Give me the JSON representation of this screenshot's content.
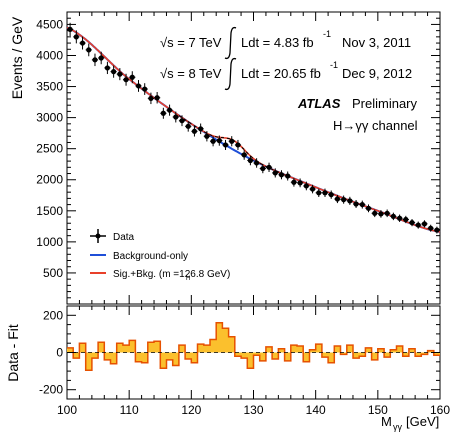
{
  "chart_data": [
    {
      "type": "scatter",
      "panel": "main",
      "ylabel": "Events / GeV",
      "xlim": [
        100,
        160
      ],
      "ylim": [
        0,
        4700
      ],
      "yticks": [
        500,
        1000,
        1500,
        2000,
        2500,
        3000,
        3500,
        4000,
        4500
      ],
      "yticklabels": [
        "500",
        "1000",
        "1500",
        "2000",
        "2500",
        "3000",
        "3500",
        "4000",
        "4500"
      ],
      "annotations": {
        "sqrt_s_7": "√s = 7 TeV",
        "lumi_7": "Ldt = 4.83 fb",
        "lumi_7_exp": "-1",
        "date_7": "Nov  3, 2011",
        "sqrt_s_8": "√s = 8 TeV",
        "lumi_8": "Ldt = 20.65 fb",
        "lumi_8_exp": "-1",
        "date_8": "Dec  9, 2012",
        "experiment": "ATLAS",
        "status": "Preliminary",
        "channel": "H→γγ channel"
      },
      "legend": {
        "placement": "bottom-left",
        "entries": [
          {
            "label": "Data",
            "style": "points",
            "color": "#000000"
          },
          {
            "label": "Background-only",
            "style": "line",
            "color": "#1f4fd8"
          },
          {
            "label": "Sig.+Bkg. (m  =126.8 GeV)",
            "sublabel": "H",
            "style": "line",
            "color": "#e8402a"
          }
        ]
      },
      "data_x": [
        100.5,
        101.5,
        102.5,
        103.5,
        104.5,
        105.5,
        106.5,
        107.5,
        108.5,
        109.5,
        110.5,
        111.5,
        112.5,
        113.5,
        114.5,
        115.5,
        116.5,
        117.5,
        118.5,
        119.5,
        120.5,
        121.5,
        122.5,
        123.5,
        124.5,
        125.5,
        126.5,
        127.5,
        128.5,
        129.5,
        130.5,
        131.5,
        132.5,
        133.5,
        134.5,
        135.5,
        136.5,
        137.5,
        138.5,
        139.5,
        140.5,
        141.5,
        142.5,
        143.5,
        144.5,
        145.5,
        146.5,
        147.5,
        148.5,
        149.5,
        150.5,
        151.5,
        152.5,
        153.5,
        154.5,
        155.5,
        156.5,
        157.5,
        158.5,
        159.5
      ],
      "data_y": [
        4420,
        4300,
        4200,
        4090,
        3930,
        3960,
        3800,
        3740,
        3700,
        3610,
        3650,
        3510,
        3460,
        3310,
        3320,
        3070,
        3120,
        3010,
        2950,
        2860,
        2780,
        2820,
        2700,
        2620,
        2630,
        2560,
        2620,
        2560,
        2400,
        2310,
        2270,
        2180,
        2200,
        2110,
        2080,
        2060,
        1960,
        1950,
        1900,
        1850,
        1790,
        1790,
        1760,
        1690,
        1680,
        1660,
        1610,
        1600,
        1540,
        1460,
        1450,
        1460,
        1410,
        1380,
        1360,
        1310,
        1270,
        1290,
        1220,
        1190
      ],
      "background_fit": {
        "x": [
          100,
          110,
          120,
          130,
          140,
          150,
          160
        ],
        "y": [
          4450,
          3620,
          2900,
          2310,
          1880,
          1500,
          1160
        ]
      },
      "signal_plus_background": {
        "mass": 126.8,
        "peak_height": 150,
        "width": 1.8
      }
    },
    {
      "type": "bar",
      "panel": "residual",
      "ylabel": "Data - Fit",
      "xlabel": "M",
      "xlabel_sub": "γγ",
      "xlabel_unit": "[GeV]",
      "xlim": [
        100,
        160
      ],
      "ylim": [
        -250,
        250
      ],
      "xticks": [
        100,
        110,
        120,
        130,
        140,
        150,
        160
      ],
      "xticklabels": [
        "100",
        "110",
        "120",
        "130",
        "140",
        "150",
        "160"
      ],
      "yticks": [
        -200,
        0,
        200
      ],
      "yticklabels": [
        "-200",
        "0",
        "200"
      ],
      "colors": {
        "fill": "#fbc02d",
        "edge": "#e65100"
      },
      "x": [
        100.5,
        101.5,
        102.5,
        103.5,
        104.5,
        105.5,
        106.5,
        107.5,
        108.5,
        109.5,
        110.5,
        111.5,
        112.5,
        113.5,
        114.5,
        115.5,
        116.5,
        117.5,
        118.5,
        119.5,
        120.5,
        121.5,
        122.5,
        123.5,
        124.5,
        125.5,
        126.5,
        127.5,
        128.5,
        129.5,
        130.5,
        131.5,
        132.5,
        133.5,
        134.5,
        135.5,
        136.5,
        137.5,
        138.5,
        139.5,
        140.5,
        141.5,
        142.5,
        143.5,
        144.5,
        145.5,
        146.5,
        147.5,
        148.5,
        149.5,
        150.5,
        151.5,
        152.5,
        153.5,
        154.5,
        155.5,
        156.5,
        157.5,
        158.5,
        159.5
      ],
      "values": [
        25,
        -30,
        50,
        -95,
        -30,
        55,
        -40,
        -60,
        50,
        40,
        65,
        -50,
        -55,
        55,
        60,
        -85,
        -40,
        -70,
        40,
        -35,
        -55,
        45,
        40,
        70,
        160,
        130,
        85,
        -20,
        -30,
        -85,
        -15,
        -45,
        30,
        -35,
        20,
        -45,
        40,
        35,
        -50,
        15,
        45,
        -25,
        -55,
        35,
        -10,
        40,
        -30,
        -20,
        25,
        -40,
        20,
        -25,
        15,
        35,
        -20,
        20,
        -20,
        -10,
        10,
        -15
      ]
    }
  ]
}
